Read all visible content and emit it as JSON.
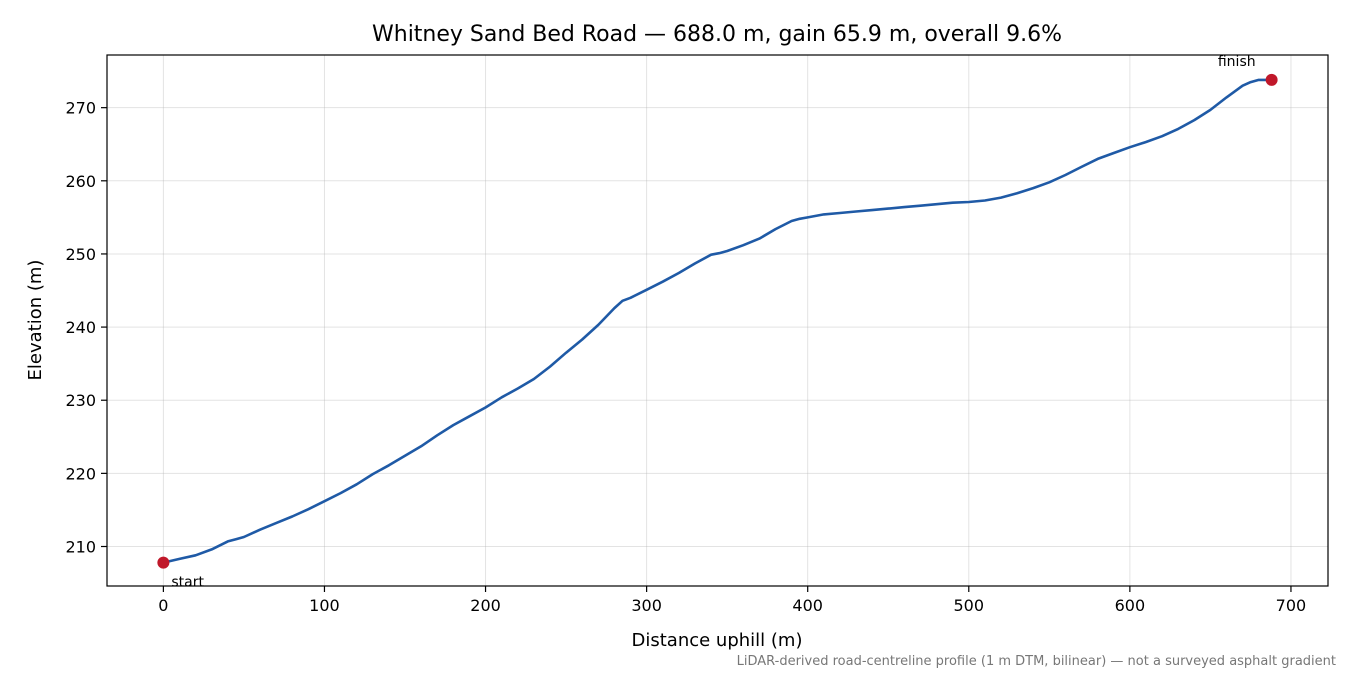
{
  "chart_data": {
    "type": "line",
    "title": "Whitney Sand Bed Road — 688.0 m, gain 65.9 m, overall 9.6%",
    "xlabel": "Distance uphill (m)",
    "ylabel": "Elevation (m)",
    "xlim": [
      -35,
      723
    ],
    "ylim": [
      204.6,
      277.2
    ],
    "xticks": [
      0,
      100,
      200,
      300,
      400,
      500,
      600,
      700
    ],
    "yticks": [
      210,
      220,
      230,
      240,
      250,
      260,
      270
    ],
    "grid": true,
    "line_color": "#1f5aa6",
    "marker_color": "#c0182a",
    "series": [
      {
        "x": [
          0,
          10,
          20,
          30,
          40,
          45,
          50,
          60,
          70,
          80,
          90,
          100,
          110,
          120,
          130,
          140,
          150,
          160,
          170,
          180,
          190,
          200,
          210,
          220,
          230,
          240,
          250,
          260,
          270,
          280,
          285,
          290,
          300,
          310,
          320,
          330,
          340,
          345,
          350,
          360,
          370,
          380,
          390,
          395,
          400,
          410,
          420,
          430,
          440,
          450,
          460,
          470,
          480,
          490,
          500,
          510,
          520,
          530,
          540,
          550,
          560,
          570,
          580,
          590,
          600,
          610,
          620,
          630,
          640,
          650,
          660,
          670,
          675,
          680,
          688
        ],
        "y": [
          207.8,
          208.3,
          208.8,
          209.6,
          210.7,
          211.0,
          211.3,
          212.3,
          213.2,
          214.1,
          215.1,
          216.2,
          217.3,
          218.5,
          219.9,
          221.1,
          222.4,
          223.7,
          225.2,
          226.6,
          227.8,
          229.0,
          230.4,
          231.6,
          232.9,
          234.6,
          236.5,
          238.3,
          240.3,
          242.6,
          243.6,
          244.0,
          245.1,
          246.2,
          247.4,
          248.7,
          249.9,
          250.1,
          250.4,
          251.2,
          252.1,
          253.4,
          254.5,
          254.8,
          255.0,
          255.4,
          255.6,
          255.8,
          256.0,
          256.2,
          256.4,
          256.6,
          256.8,
          257.0,
          257.1,
          257.3,
          257.7,
          258.3,
          259.0,
          259.8,
          260.8,
          261.9,
          263.0,
          263.8,
          264.6,
          265.3,
          266.1,
          267.1,
          268.3,
          269.7,
          271.4,
          273.0,
          273.5,
          273.8,
          273.8
        ]
      }
    ],
    "annotations": [
      {
        "text": "start",
        "x": 0,
        "y": 207.8
      },
      {
        "text": "finish",
        "x": 688,
        "y": 273.8
      }
    ],
    "footnote": "LiDAR-derived road-centreline profile (1 m DTM, bilinear) — not a surveyed asphalt gradient"
  }
}
